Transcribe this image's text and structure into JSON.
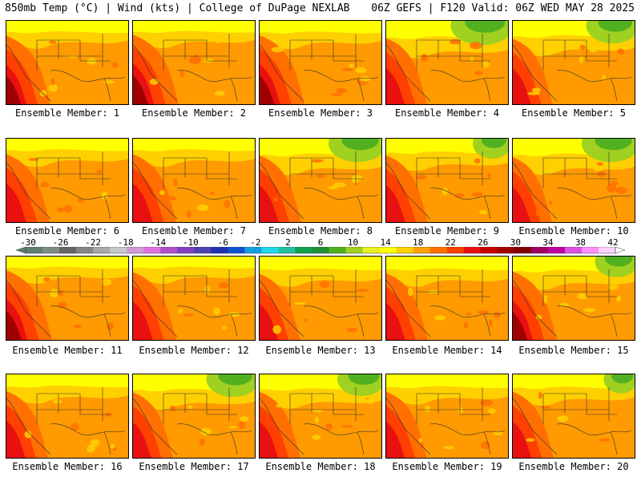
{
  "header": {
    "left": "850mb Temp (°C) | Wind (kts) | College of DuPage NEXLAB",
    "right": "06Z GEFS | F120 Valid: 06Z WED MAY 28 2025"
  },
  "panels": [
    {
      "label": "Ensemble Member: 1",
      "cool": 0.18,
      "warm": 0.75
    },
    {
      "label": "Ensemble Member: 2",
      "cool": 0.15,
      "warm": 0.85
    },
    {
      "label": "Ensemble Member: 3",
      "cool": 0.2,
      "warm": 0.8
    },
    {
      "label": "Ensemble Member: 4",
      "cool": 0.65,
      "warm": 0.55
    },
    {
      "label": "Ensemble Member: 5",
      "cool": 0.55,
      "warm": 0.5
    },
    {
      "label": "Ensemble Member: 6",
      "cool": 0.2,
      "warm": 0.7
    },
    {
      "label": "Ensemble Member: 7",
      "cool": 0.2,
      "warm": 0.7
    },
    {
      "label": "Ensemble Member: 8",
      "cool": 0.6,
      "warm": 0.6
    },
    {
      "label": "Ensemble Member: 9",
      "cool": 0.4,
      "warm": 0.6
    },
    {
      "label": "Ensemble Member: 10",
      "cool": 0.6,
      "warm": 0.45
    },
    {
      "label": "Ensemble Member: 11",
      "cool": 0.15,
      "warm": 0.85
    },
    {
      "label": "Ensemble Member: 12",
      "cool": 0.15,
      "warm": 0.7
    },
    {
      "label": "Ensemble Member: 13",
      "cool": 0.3,
      "warm": 0.55
    },
    {
      "label": "Ensemble Member: 14",
      "cool": 0.3,
      "warm": 0.6
    },
    {
      "label": "Ensemble Member: 15",
      "cool": 0.45,
      "warm": 0.75
    },
    {
      "label": "Ensemble Member: 16",
      "cool": 0.25,
      "warm": 0.6
    },
    {
      "label": "Ensemble Member: 17",
      "cool": 0.55,
      "warm": 0.5
    },
    {
      "label": "Ensemble Member: 18",
      "cool": 0.5,
      "warm": 0.55
    },
    {
      "label": "Ensemble Member: 19",
      "cool": 0.3,
      "warm": 0.55
    },
    {
      "label": "Ensemble Member: 20",
      "cool": 0.35,
      "warm": 0.55
    }
  ],
  "scale": {
    "ticks": [
      "-30",
      "-26",
      "-22",
      "-18",
      "-14",
      "-10",
      "-6",
      "-2",
      "2",
      "6",
      "10",
      "14",
      "18",
      "22",
      "26",
      "30",
      "34",
      "38",
      "42"
    ],
    "colors": [
      "#5e7e6e",
      "#7d8d85",
      "#666666",
      "#858585",
      "#a8a8a8",
      "#c8c8c8",
      "#d09ad8",
      "#e070e0",
      "#b050c8",
      "#8040c0",
      "#5040b0",
      "#2030b0",
      "#1050d0",
      "#10a0e0",
      "#20d8e8",
      "#20c0a0",
      "#10a050",
      "#209030",
      "#50b020",
      "#a0d020",
      "#e8f020",
      "#ffff00",
      "#ffd000",
      "#ffa000",
      "#ff7000",
      "#ff4000",
      "#e81010",
      "#c80000",
      "#a00000",
      "#800000",
      "#a00060",
      "#c000a0",
      "#e050e0",
      "#ff90ff",
      "#ffd0ff"
    ]
  }
}
